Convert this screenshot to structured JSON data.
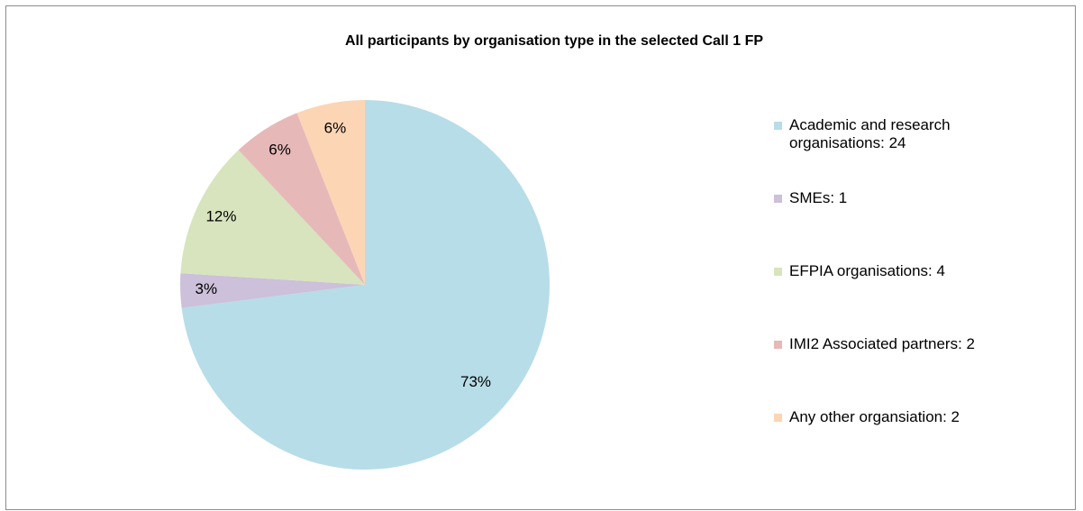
{
  "chart_data": {
    "type": "pie",
    "title": "All participants by organisation type in the selected Call 1 FP",
    "categories": [
      "Academic and research organisations: 24",
      "SMEs: 1",
      "EFPIA organisations: 4",
      "IMI2 Associated partners: 2",
      "Any other organsiation: 2"
    ],
    "values": [
      73,
      3,
      12,
      6,
      6
    ],
    "value_labels": [
      "73%",
      "3%",
      "12%",
      "6%",
      "6%"
    ],
    "colors": [
      "#b7dde8",
      "#ccc0da",
      "#d7e4bd",
      "#e6b9b8",
      "#fcd5b5"
    ],
    "legend": "right"
  }
}
